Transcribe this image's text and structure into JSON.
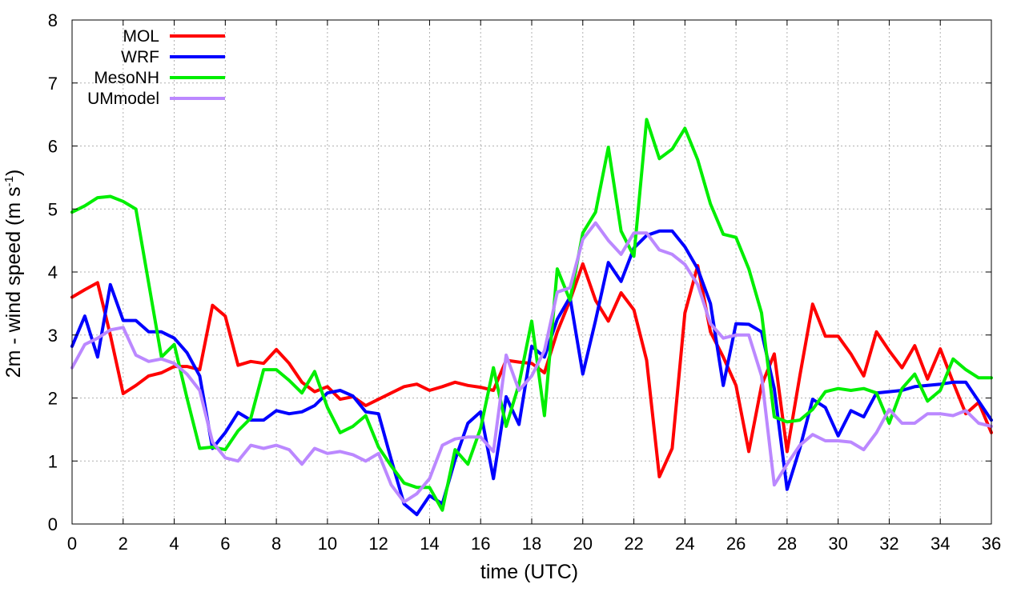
{
  "chart_data": {
    "type": "line",
    "xlabel": "time (UTC)",
    "ylabel": "2m - wind speed  (m s",
    "ylabel_sup": "-1",
    "ylabel_close": ")",
    "xlim": [
      0,
      36
    ],
    "ylim": [
      0,
      8
    ],
    "xticks": [
      0,
      2,
      4,
      6,
      8,
      10,
      12,
      14,
      16,
      18,
      20,
      22,
      24,
      26,
      28,
      30,
      32,
      34,
      36
    ],
    "yticks": [
      0,
      1,
      2,
      3,
      4,
      5,
      6,
      7,
      8
    ],
    "grid": true,
    "legend_position": "top-left",
    "series": [
      {
        "name": "MOL",
        "color": "#ff0000",
        "x": [
          0,
          0.5,
          1,
          1.5,
          2,
          2.5,
          3,
          3.5,
          4,
          4.5,
          5,
          5.5,
          6,
          6.5,
          7,
          7.5,
          8,
          8.5,
          9,
          9.5,
          10,
          10.5,
          11,
          11.5,
          12,
          12.5,
          13,
          13.5,
          14,
          14.5,
          15,
          15.5,
          16,
          16.5,
          17,
          17.5,
          18,
          18.5,
          19,
          19.5,
          20,
          20.5,
          21,
          21.5,
          22,
          22.5,
          23,
          23.5,
          24,
          24.5,
          25,
          25.5,
          26,
          26.5,
          27,
          27.5,
          28,
          28.5,
          29,
          29.5,
          30,
          30.5,
          31,
          31.5,
          32,
          32.5,
          33,
          33.5,
          34,
          34.5,
          35,
          35.5,
          36
        ],
        "y": [
          3.6,
          3.72,
          3.83,
          3.0,
          2.07,
          2.2,
          2.35,
          2.4,
          2.5,
          2.5,
          2.45,
          3.47,
          3.3,
          2.52,
          2.58,
          2.55,
          2.77,
          2.55,
          2.25,
          2.1,
          2.18,
          1.98,
          2.02,
          1.88,
          1.98,
          2.08,
          2.18,
          2.22,
          2.12,
          2.18,
          2.25,
          2.2,
          2.17,
          2.12,
          2.6,
          2.57,
          2.55,
          2.4,
          3.05,
          3.55,
          4.13,
          3.55,
          3.22,
          3.67,
          3.4,
          2.6,
          0.75,
          1.2,
          3.35,
          4.1,
          3.05,
          2.65,
          2.2,
          1.15,
          2.2,
          2.7,
          1.15,
          2.35,
          3.49,
          2.98,
          2.98,
          2.7,
          2.35,
          3.05,
          2.75,
          2.48,
          2.83,
          2.3,
          2.78,
          2.25,
          1.75,
          1.93,
          1.45
        ]
      },
      {
        "name": "WRF",
        "color": "#0000ff",
        "x": [
          0,
          0.5,
          1,
          1.5,
          2,
          2.5,
          3,
          3.5,
          4,
          4.5,
          5,
          5.5,
          6,
          6.5,
          7,
          7.5,
          8,
          8.5,
          9,
          9.5,
          10,
          10.5,
          11,
          11.5,
          12,
          12.5,
          13,
          13.5,
          14,
          14.5,
          15,
          15.5,
          16,
          16.5,
          17,
          17.5,
          18,
          18.5,
          19,
          19.5,
          20,
          20.5,
          21,
          21.5,
          22,
          22.5,
          23,
          23.5,
          24,
          24.5,
          25,
          25.5,
          26,
          26.5,
          27,
          27.5,
          28,
          28.5,
          29,
          29.5,
          30,
          30.5,
          31,
          31.5,
          32,
          32.5,
          33,
          33.5,
          34,
          34.5,
          35,
          35.5,
          36
        ],
        "y": [
          2.82,
          3.3,
          2.65,
          3.8,
          3.23,
          3.23,
          3.05,
          3.05,
          2.95,
          2.72,
          2.35,
          1.2,
          1.45,
          1.77,
          1.65,
          1.65,
          1.8,
          1.75,
          1.78,
          1.88,
          2.08,
          2.12,
          2.03,
          1.78,
          1.75,
          1.02,
          0.32,
          0.15,
          0.45,
          0.32,
          1.02,
          1.6,
          1.78,
          0.72,
          2.02,
          1.58,
          2.82,
          2.65,
          3.25,
          3.6,
          2.38,
          3.23,
          4.15,
          3.85,
          4.38,
          4.58,
          4.65,
          4.65,
          4.4,
          4.05,
          3.5,
          2.2,
          3.18,
          3.17,
          3.05,
          2.15,
          0.55,
          1.2,
          1.98,
          1.85,
          1.4,
          1.8,
          1.7,
          2.08,
          2.1,
          2.12,
          2.18,
          2.2,
          2.22,
          2.25,
          2.25,
          1.95,
          1.65
        ]
      },
      {
        "name": "MesoNH",
        "color": "#00ee00",
        "x": [
          0,
          0.5,
          1,
          1.5,
          2,
          2.5,
          3,
          3.5,
          4,
          4.5,
          5,
          5.5,
          6,
          6.5,
          7,
          7.5,
          8,
          8.5,
          9,
          9.5,
          10,
          10.5,
          11,
          11.5,
          12,
          12.5,
          13,
          13.5,
          14,
          14.5,
          15,
          15.5,
          16,
          16.5,
          17,
          17.5,
          18,
          18.5,
          19,
          19.5,
          20,
          20.5,
          21,
          21.5,
          22,
          22.5,
          23,
          23.5,
          24,
          24.5,
          25,
          25.5,
          26,
          26.5,
          27,
          27.5,
          28,
          28.5,
          29,
          29.5,
          30,
          30.5,
          31,
          31.5,
          32,
          32.5,
          33,
          33.5,
          34,
          34.5,
          35,
          35.5,
          36
        ],
        "y": [
          4.95,
          5.05,
          5.18,
          5.2,
          5.12,
          5.0,
          3.82,
          2.65,
          2.85,
          2.0,
          1.2,
          1.22,
          1.18,
          1.48,
          1.68,
          2.45,
          2.45,
          2.28,
          2.08,
          2.42,
          1.85,
          1.45,
          1.55,
          1.72,
          1.22,
          0.92,
          0.65,
          0.58,
          0.58,
          0.22,
          1.18,
          0.95,
          1.52,
          2.48,
          1.55,
          2.22,
          3.22,
          1.72,
          4.05,
          3.55,
          4.62,
          4.95,
          5.98,
          4.65,
          4.25,
          6.42,
          5.8,
          5.95,
          6.28,
          5.78,
          5.08,
          4.6,
          4.55,
          4.05,
          3.35,
          1.7,
          1.62,
          1.65,
          1.82,
          2.1,
          2.15,
          2.12,
          2.15,
          2.08,
          1.6,
          2.15,
          2.38,
          1.95,
          2.12,
          2.62,
          2.45,
          2.32,
          2.32
        ]
      },
      {
        "name": "UMmodel",
        "color": "#bb88ff",
        "x": [
          0,
          0.5,
          1,
          1.5,
          2,
          2.5,
          3,
          3.5,
          4,
          4.5,
          5,
          5.5,
          6,
          6.5,
          7,
          7.5,
          8,
          8.5,
          9,
          9.5,
          10,
          10.5,
          11,
          11.5,
          12,
          12.5,
          13,
          13.5,
          14,
          14.5,
          15,
          15.5,
          16,
          16.5,
          17,
          17.5,
          18,
          18.5,
          19,
          19.5,
          20,
          20.5,
          21,
          21.5,
          22,
          22.5,
          23,
          23.5,
          24,
          24.5,
          25,
          25.5,
          26,
          26.5,
          27,
          27.5,
          28,
          28.5,
          29,
          29.5,
          30,
          30.5,
          31,
          31.5,
          32,
          32.5,
          33,
          33.5,
          34,
          34.5,
          35,
          35.5,
          36
        ],
        "y": [
          2.48,
          2.85,
          2.95,
          3.08,
          3.12,
          2.68,
          2.58,
          2.62,
          2.55,
          2.38,
          2.12,
          1.3,
          1.05,
          1.0,
          1.25,
          1.2,
          1.25,
          1.18,
          0.95,
          1.2,
          1.12,
          1.15,
          1.1,
          1.0,
          1.12,
          0.62,
          0.35,
          0.48,
          0.72,
          1.25,
          1.35,
          1.38,
          1.38,
          1.15,
          2.68,
          2.12,
          2.35,
          2.75,
          3.68,
          3.75,
          4.52,
          4.78,
          4.5,
          4.28,
          4.62,
          4.62,
          4.35,
          4.28,
          4.12,
          3.8,
          3.18,
          2.95,
          3.0,
          3.0,
          2.35,
          0.62,
          0.95,
          1.25,
          1.42,
          1.32,
          1.32,
          1.3,
          1.18,
          1.45,
          1.82,
          1.6,
          1.6,
          1.75,
          1.75,
          1.72,
          1.8,
          1.6,
          1.55
        ]
      }
    ]
  }
}
